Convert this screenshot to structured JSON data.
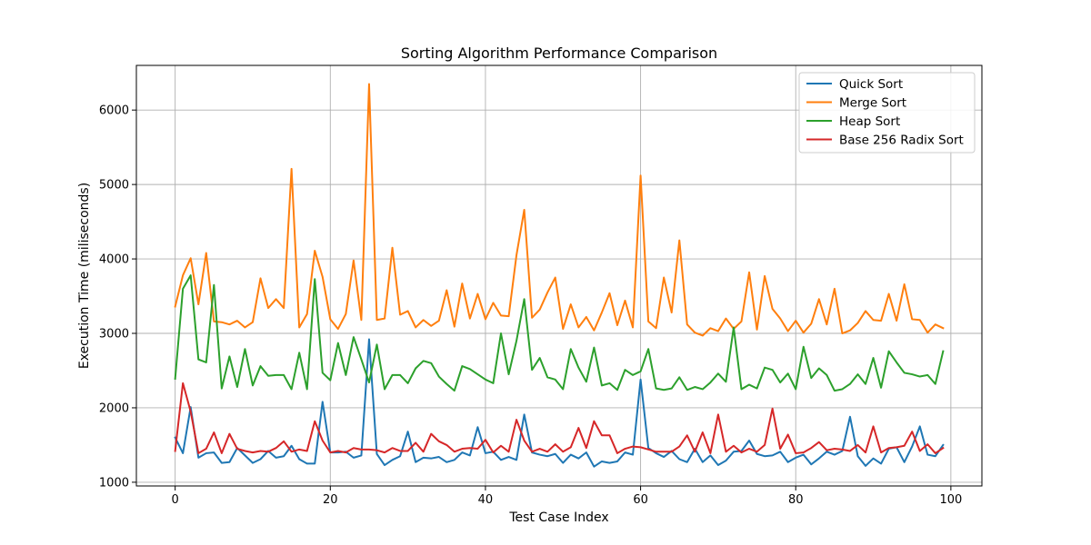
{
  "chart_data": {
    "type": "line",
    "title": "Sorting Algorithm Performance Comparison",
    "xlabel": "Test Case Index",
    "ylabel": "Execution Time (miliseconds)",
    "xlim": [
      -5,
      104
    ],
    "ylim": [
      950,
      6600
    ],
    "xticks": [
      0,
      20,
      40,
      60,
      80,
      100
    ],
    "yticks": [
      1000,
      2000,
      3000,
      4000,
      5000,
      6000
    ],
    "grid": true,
    "legend_position": "top-right",
    "x": [
      0,
      1,
      2,
      3,
      4,
      5,
      6,
      7,
      8,
      9,
      10,
      11,
      12,
      13,
      14,
      15,
      16,
      17,
      18,
      19,
      20,
      21,
      22,
      23,
      24,
      25,
      26,
      27,
      28,
      29,
      30,
      31,
      32,
      33,
      34,
      35,
      36,
      37,
      38,
      39,
      40,
      41,
      42,
      43,
      44,
      45,
      46,
      47,
      48,
      49,
      50,
      51,
      52,
      53,
      54,
      55,
      56,
      57,
      58,
      59,
      60,
      61,
      62,
      63,
      64,
      65,
      66,
      67,
      68,
      69,
      70,
      71,
      72,
      73,
      74,
      75,
      76,
      77,
      78,
      79,
      80,
      81,
      82,
      83,
      84,
      85,
      86,
      87,
      88,
      89,
      90,
      91,
      92,
      93,
      94,
      95,
      96,
      97,
      98,
      99
    ],
    "series": [
      {
        "name": "Quick Sort",
        "color": "#1f77b4",
        "values": [
          1600,
          1390,
          2010,
          1330,
          1390,
          1400,
          1260,
          1270,
          1460,
          1360,
          1260,
          1310,
          1420,
          1330,
          1350,
          1490,
          1310,
          1250,
          1250,
          2080,
          1400,
          1400,
          1410,
          1330,
          1360,
          2920,
          1380,
          1230,
          1300,
          1350,
          1680,
          1270,
          1330,
          1320,
          1340,
          1270,
          1300,
          1400,
          1360,
          1740,
          1390,
          1410,
          1300,
          1340,
          1300,
          1910,
          1400,
          1370,
          1350,
          1380,
          1260,
          1370,
          1320,
          1400,
          1210,
          1280,
          1260,
          1280,
          1400,
          1370,
          2380,
          1460,
          1390,
          1340,
          1420,
          1310,
          1270,
          1450,
          1270,
          1360,
          1230,
          1290,
          1410,
          1420,
          1560,
          1380,
          1350,
          1360,
          1410,
          1270,
          1330,
          1370,
          1240,
          1320,
          1410,
          1370,
          1420,
          1880,
          1350,
          1220,
          1320,
          1250,
          1450,
          1470,
          1270,
          1480,
          1750,
          1370,
          1350,
          1500
        ]
      },
      {
        "name": "Merge Sort",
        "color": "#ff7f0e",
        "values": [
          3360,
          3780,
          4010,
          3390,
          4080,
          3160,
          3150,
          3120,
          3170,
          3080,
          3150,
          3740,
          3340,
          3460,
          3340,
          5210,
          3080,
          3260,
          4110,
          3760,
          3190,
          3060,
          3260,
          3980,
          3180,
          6350,
          3180,
          3200,
          4150,
          3250,
          3300,
          3080,
          3180,
          3100,
          3170,
          3580,
          3090,
          3670,
          3200,
          3530,
          3190,
          3410,
          3240,
          3230,
          4050,
          4660,
          3210,
          3320,
          3550,
          3750,
          3060,
          3390,
          3080,
          3220,
          3040,
          3280,
          3540,
          3110,
          3440,
          3080,
          5120,
          3160,
          3070,
          3750,
          3280,
          4250,
          3120,
          3010,
          2970,
          3070,
          3030,
          3200,
          3060,
          3160,
          3820,
          3050,
          3770,
          3330,
          3200,
          3030,
          3170,
          3010,
          3130,
          3460,
          3120,
          3600,
          3000,
          3040,
          3140,
          3300,
          3180,
          3170,
          3530,
          3170,
          3660,
          3190,
          3180,
          3010,
          3120,
          3070
        ]
      },
      {
        "name": "Heap Sort",
        "color": "#2ca02c",
        "values": [
          2390,
          3600,
          3780,
          2650,
          2610,
          3650,
          2260,
          2690,
          2280,
          2790,
          2300,
          2560,
          2430,
          2440,
          2440,
          2250,
          2740,
          2250,
          3730,
          2470,
          2370,
          2870,
          2440,
          2950,
          2650,
          2340,
          2850,
          2250,
          2440,
          2440,
          2330,
          2530,
          2630,
          2600,
          2420,
          2320,
          2230,
          2560,
          2520,
          2450,
          2380,
          2330,
          3000,
          2450,
          2900,
          3460,
          2510,
          2670,
          2410,
          2380,
          2250,
          2790,
          2540,
          2350,
          2810,
          2300,
          2330,
          2240,
          2510,
          2440,
          2490,
          2790,
          2260,
          2240,
          2260,
          2410,
          2240,
          2280,
          2250,
          2340,
          2460,
          2350,
          3080,
          2250,
          2310,
          2260,
          2540,
          2510,
          2340,
          2460,
          2250,
          2820,
          2400,
          2530,
          2440,
          2230,
          2250,
          2320,
          2450,
          2320,
          2670,
          2270,
          2760,
          2610,
          2470,
          2450,
          2420,
          2440,
          2320,
          2760
        ]
      },
      {
        "name": "Base 256 Radix Sort",
        "color": "#d62728",
        "values": [
          1420,
          2330,
          1950,
          1390,
          1450,
          1670,
          1390,
          1650,
          1450,
          1420,
          1400,
          1420,
          1410,
          1460,
          1550,
          1410,
          1440,
          1420,
          1820,
          1560,
          1400,
          1420,
          1400,
          1460,
          1440,
          1440,
          1430,
          1400,
          1460,
          1420,
          1420,
          1530,
          1410,
          1650,
          1550,
          1500,
          1410,
          1450,
          1460,
          1450,
          1570,
          1400,
          1490,
          1410,
          1840,
          1560,
          1410,
          1450,
          1410,
          1510,
          1410,
          1470,
          1730,
          1460,
          1820,
          1630,
          1630,
          1390,
          1450,
          1480,
          1470,
          1440,
          1410,
          1410,
          1410,
          1480,
          1630,
          1410,
          1670,
          1390,
          1910,
          1410,
          1490,
          1400,
          1450,
          1410,
          1500,
          1990,
          1450,
          1640,
          1390,
          1400,
          1460,
          1540,
          1430,
          1450,
          1440,
          1420,
          1500,
          1400,
          1750,
          1400,
          1460,
          1470,
          1490,
          1680,
          1420,
          1510,
          1390,
          1460
        ]
      }
    ]
  }
}
